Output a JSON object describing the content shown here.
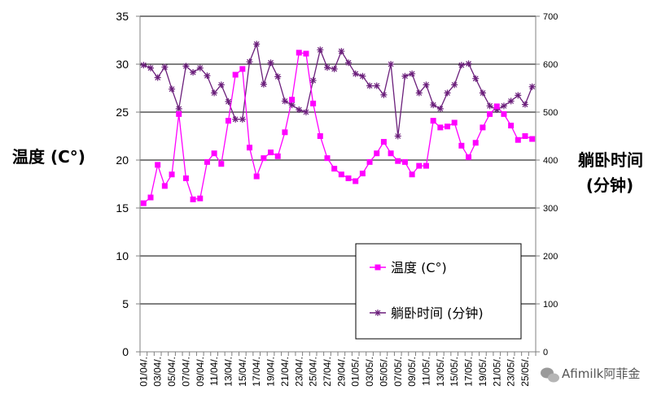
{
  "chart_data": {
    "type": "line",
    "y_left_label": "温度 (C°)",
    "y_right_label_line1": "躺卧时间",
    "y_right_label_line2": "(分钟)",
    "y_left_range": [
      0,
      35
    ],
    "y_left_ticks": [
      0,
      5,
      10,
      15,
      20,
      25,
      30,
      35
    ],
    "y_right_range": [
      0,
      700
    ],
    "y_right_ticks": [
      0,
      100,
      200,
      300,
      400,
      500,
      600,
      700
    ],
    "grid": "horizontal",
    "legend_position": "bottom-right",
    "x": [
      "01/04",
      "02/04",
      "03/04",
      "04/04",
      "05/04",
      "06/04",
      "07/04",
      "08/04",
      "09/04",
      "10/04",
      "11/04",
      "12/04",
      "13/04",
      "14/04",
      "15/04",
      "16/04",
      "17/04",
      "18/04",
      "19/04",
      "20/04",
      "21/04",
      "22/04",
      "23/04",
      "24/04",
      "25/04",
      "26/04",
      "27/04",
      "28/04",
      "29/04",
      "30/04",
      "01/05",
      "02/05",
      "03/05",
      "04/05",
      "05/05",
      "06/05",
      "07/05",
      "08/05",
      "09/05",
      "10/05",
      "11/05",
      "12/05",
      "13/05",
      "14/05",
      "15/05",
      "16/05",
      "17/05",
      "18/05",
      "19/05",
      "20/05",
      "21/05",
      "22/05",
      "23/05",
      "24/05",
      "25/05",
      "26/05"
    ],
    "x_tick_labels": [
      "01/04/.",
      "03/04/.",
      "05/04/.",
      "07/04/.",
      "09/04/.",
      "11/04/.",
      "13/04/.",
      "15/04/.",
      "17/04/.",
      "19/04/.",
      "21/04/.",
      "23/04/.",
      "25/04/.",
      "27/04/.",
      "29/04/.",
      "01/05/.",
      "03/05/.",
      "05/05/.",
      "07/05/.",
      "09/05/.",
      "11/05/.",
      "13/05/.",
      "15/05/.",
      "17/05/.",
      "19/05/.",
      "21/05/.",
      "23/05/.",
      "25/05/."
    ],
    "series": [
      {
        "name": "温度 (C°)",
        "axis": "left",
        "color": "#ff00ff",
        "marker": "square",
        "values": [
          15.5,
          16.1,
          19.5,
          17.3,
          18.5,
          24.8,
          18.1,
          15.9,
          16.0,
          19.8,
          20.7,
          19.6,
          24.1,
          28.9,
          29.5,
          21.3,
          18.3,
          20.2,
          20.8,
          20.4,
          22.9,
          26.3,
          31.2,
          31.1,
          25.9,
          22.5,
          20.2,
          19.1,
          18.5,
          18.1,
          17.8,
          18.6,
          19.8,
          20.7,
          21.9,
          20.7,
          19.9,
          19.8,
          18.5,
          19.4,
          19.4,
          24.1,
          23.4,
          23.5,
          23.9,
          21.5,
          20.3,
          21.8,
          23.4,
          24.8,
          25.6,
          24.8,
          23.6,
          22.1,
          22.5,
          22.2
        ]
      },
      {
        "name": "躺卧时间 (分钟)",
        "axis": "right",
        "color": "#6b1f7b",
        "marker": "star",
        "values": [
          598,
          592,
          572,
          594,
          548,
          507,
          596,
          583,
          592,
          576,
          540,
          557,
          522,
          485,
          485,
          605,
          642,
          558,
          603,
          574,
          523,
          515,
          505,
          500,
          566,
          630,
          593,
          590,
          627,
          603,
          580,
          575,
          555,
          555,
          536,
          600,
          450,
          575,
          580,
          540,
          557,
          515,
          507,
          540,
          557,
          598,
          601,
          570,
          540,
          513,
          505,
          513,
          523,
          535,
          516,
          553
        ]
      }
    ]
  },
  "watermark": {
    "text": "Afimilk阿菲金",
    "icon": "wechat-icon"
  }
}
